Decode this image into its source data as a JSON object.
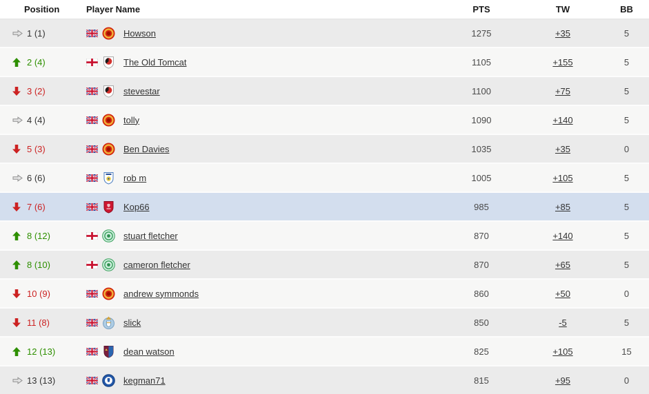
{
  "header": {
    "position": "Position",
    "player": "Player Name",
    "pts": "PTS",
    "tw": "TW",
    "bb": "BB"
  },
  "colors": {
    "up": "#2e8f00",
    "down": "#cc2222",
    "same": "#333333",
    "highlight": "#d3deee",
    "row_odd": "#ebebeb",
    "row_even": "#f7f7f6",
    "link": "#333333"
  },
  "rows": [
    {
      "trend": "same",
      "rank": "1",
      "prev": "(1)",
      "flag": "uk",
      "team": "man-utd",
      "player": "Howson",
      "pts": "1275",
      "tw": "+35",
      "bb": "5",
      "highlighted": false
    },
    {
      "trend": "up",
      "rank": "2",
      "prev": "(4)",
      "flag": "england",
      "team": "cheltenham",
      "player": "The Old Tomcat",
      "pts": "1105",
      "tw": "+155",
      "bb": "5",
      "highlighted": false
    },
    {
      "trend": "down",
      "rank": "3",
      "prev": "(2)",
      "flag": "uk",
      "team": "cheltenham",
      "player": "stevestar",
      "pts": "1100",
      "tw": "+75",
      "bb": "5",
      "highlighted": false
    },
    {
      "trend": "same",
      "rank": "4",
      "prev": "(4)",
      "flag": "uk",
      "team": "man-utd",
      "player": "tolly",
      "pts": "1090",
      "tw": "+140",
      "bb": "5",
      "highlighted": false
    },
    {
      "trend": "down",
      "rank": "5",
      "prev": "(3)",
      "flag": "uk",
      "team": "man-utd",
      "player": "Ben Davies",
      "pts": "1035",
      "tw": "+35",
      "bb": "0",
      "highlighted": false
    },
    {
      "trend": "same",
      "rank": "6",
      "prev": "(6)",
      "flag": "uk",
      "team": "leeds",
      "player": "rob m",
      "pts": "1005",
      "tw": "+105",
      "bb": "5",
      "highlighted": false
    },
    {
      "trend": "down",
      "rank": "7",
      "prev": "(6)",
      "flag": "uk",
      "team": "liverpool",
      "player": "Kop66",
      "pts": "985",
      "tw": "+85",
      "bb": "5",
      "highlighted": true
    },
    {
      "trend": "up",
      "rank": "8",
      "prev": "(12)",
      "flag": "england",
      "team": "celtic",
      "player": "stuart fletcher",
      "pts": "870",
      "tw": "+140",
      "bb": "5",
      "highlighted": false
    },
    {
      "trend": "up",
      "rank": "8",
      "prev": "(10)",
      "flag": "england",
      "team": "celtic",
      "player": "cameron fletcher",
      "pts": "870",
      "tw": "+65",
      "bb": "5",
      "highlighted": false
    },
    {
      "trend": "down",
      "rank": "10",
      "prev": "(9)",
      "flag": "uk",
      "team": "man-utd",
      "player": "andrew symmonds",
      "pts": "860",
      "tw": "+50",
      "bb": "0",
      "highlighted": false
    },
    {
      "trend": "down",
      "rank": "11",
      "prev": "(8)",
      "flag": "uk",
      "team": "man-city",
      "player": "slick",
      "pts": "850",
      "tw": "-5",
      "bb": "5",
      "highlighted": false
    },
    {
      "trend": "up",
      "rank": "12",
      "prev": "(13)",
      "flag": "uk",
      "team": "aston-villa",
      "player": "dean watson",
      "pts": "825",
      "tw": "+105",
      "bb": "15",
      "highlighted": false
    },
    {
      "trend": "same",
      "rank": "13",
      "prev": "(13)",
      "flag": "uk",
      "team": "chelsea",
      "player": "kegman71",
      "pts": "815",
      "tw": "+95",
      "bb": "0",
      "highlighted": false
    }
  ]
}
